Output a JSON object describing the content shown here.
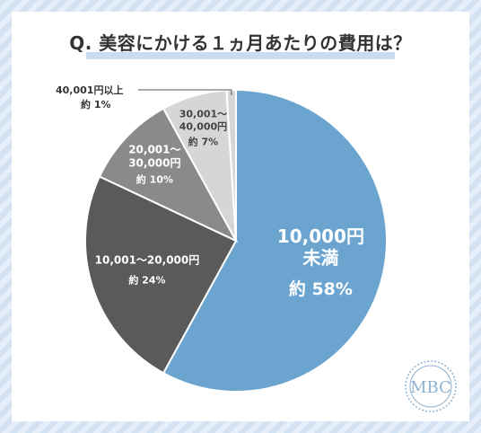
{
  "title": "Q. 美容にかける１ヵ月あたりの費用は？",
  "logo_text": "MBC",
  "colors": {
    "slice_1": "#6aa4cf",
    "slice_2": "#5a5a5a",
    "slice_3": "#8a8a8a",
    "slice_4": "#d6d6d6",
    "slice_5": "#d6d6d6",
    "title_underline": "#c9ddf0",
    "logo": "#8fb1cf"
  },
  "chart_data": {
    "type": "pie",
    "start": "top",
    "direction": "clockwise",
    "slices": [
      {
        "label_lines": [
          "10,000円",
          "未満"
        ],
        "pct_text": "約 58%",
        "value": 58
      },
      {
        "label_lines": [
          "10,001～20,000円"
        ],
        "pct_text": "約 24%",
        "value": 24
      },
      {
        "label_lines": [
          "20,001～",
          "30,000円"
        ],
        "pct_text": "約 10%",
        "value": 10
      },
      {
        "label_lines": [
          "30,001～",
          "40,000円"
        ],
        "pct_text": "約 7%",
        "value": 7
      },
      {
        "label_lines": [
          "40,001円以上"
        ],
        "pct_text": "約 1%",
        "value": 1
      }
    ]
  }
}
